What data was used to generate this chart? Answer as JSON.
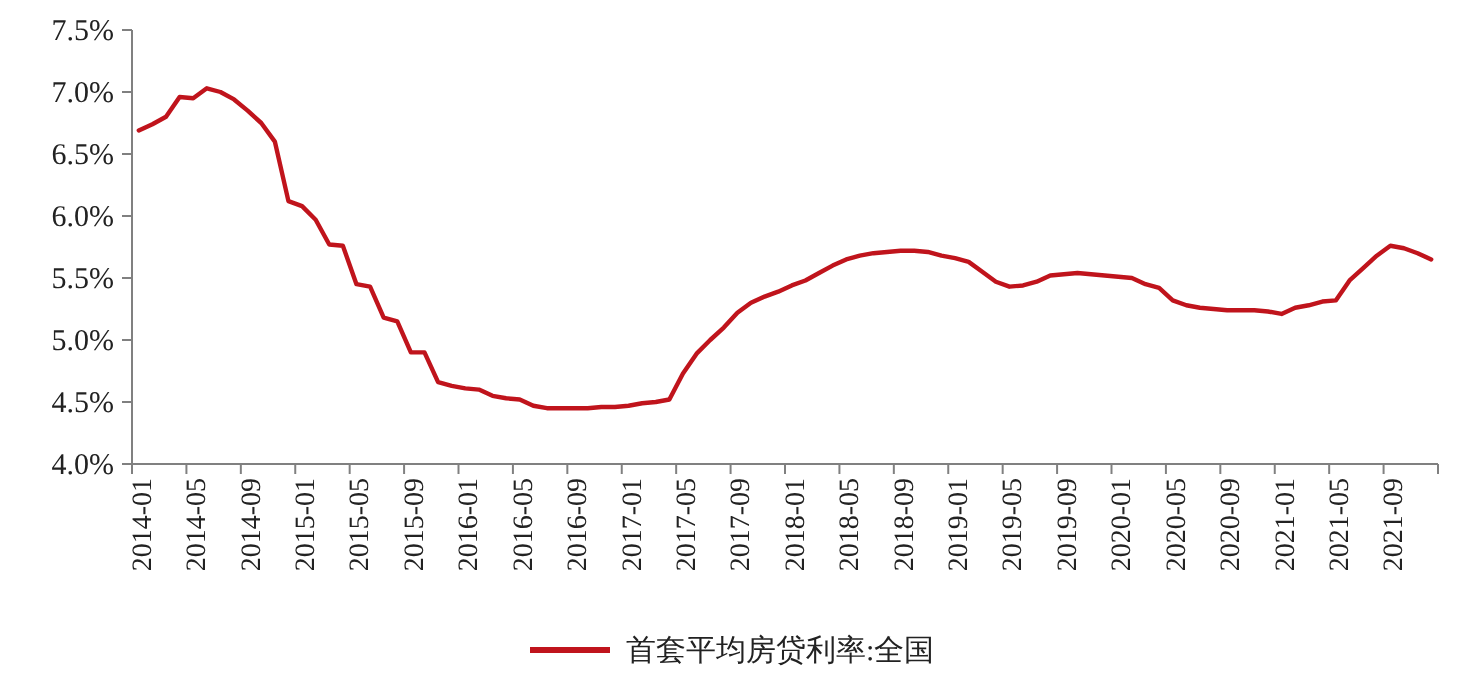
{
  "chart_data": {
    "type": "line",
    "categories": [
      "2014-01",
      null,
      null,
      null,
      "2014-05",
      null,
      null,
      null,
      "2014-09",
      null,
      null,
      null,
      "2015-01",
      null,
      null,
      null,
      "2015-05",
      null,
      null,
      null,
      "2015-09",
      null,
      null,
      null,
      "2016-01",
      null,
      null,
      null,
      "2016-05",
      null,
      null,
      null,
      "2016-09",
      null,
      null,
      null,
      "2017-01",
      null,
      null,
      null,
      "2017-05",
      null,
      null,
      null,
      "2017-09",
      null,
      null,
      null,
      "2018-01",
      null,
      null,
      null,
      "2018-05",
      null,
      null,
      null,
      "2018-09",
      null,
      null,
      null,
      "2019-01",
      null,
      null,
      null,
      "2019-05",
      null,
      null,
      null,
      "2019-09",
      null,
      null,
      null,
      "2020-01",
      null,
      null,
      null,
      "2020-05",
      null,
      null,
      null,
      "2020-09",
      null,
      null,
      null,
      "2021-01",
      null,
      null,
      null,
      "2021-05",
      null,
      null,
      null,
      "2021-09",
      null,
      null,
      null
    ],
    "series": [
      {
        "name": "首套平均房贷利率:全国",
        "color": "#c0141c",
        "values": [
          6.69,
          6.74,
          6.8,
          6.96,
          6.95,
          7.03,
          7.0,
          6.94,
          6.85,
          6.75,
          6.6,
          6.12,
          6.08,
          5.97,
          5.77,
          5.76,
          5.45,
          5.43,
          5.18,
          5.15,
          4.9,
          4.9,
          4.66,
          4.63,
          4.61,
          4.6,
          4.55,
          4.53,
          4.52,
          4.47,
          4.45,
          4.45,
          4.45,
          4.45,
          4.46,
          4.46,
          4.47,
          4.49,
          4.5,
          4.52,
          4.73,
          4.89,
          5.0,
          5.1,
          5.22,
          5.3,
          5.35,
          5.39,
          5.44,
          5.48,
          5.54,
          5.6,
          5.65,
          5.68,
          5.7,
          5.71,
          5.72,
          5.72,
          5.71,
          5.68,
          5.66,
          5.63,
          5.55,
          5.47,
          5.43,
          5.44,
          5.47,
          5.52,
          5.53,
          5.54,
          5.53,
          5.52,
          5.51,
          5.5,
          5.45,
          5.42,
          5.32,
          5.28,
          5.26,
          5.25,
          5.24,
          5.24,
          5.24,
          5.23,
          5.21,
          5.26,
          5.28,
          5.31,
          5.32,
          5.48,
          5.58,
          5.68,
          5.76,
          5.74,
          5.7,
          5.65
        ]
      }
    ],
    "ylim": [
      4.0,
      7.5
    ],
    "yticks": [
      {
        "value": 4.0,
        "label": "4.0%"
      },
      {
        "value": 4.5,
        "label": "4.5%"
      },
      {
        "value": 5.0,
        "label": "5.0%"
      },
      {
        "value": 5.5,
        "label": "5.5%"
      },
      {
        "value": 6.0,
        "label": "6.0%"
      },
      {
        "value": 6.5,
        "label": "6.5%"
      },
      {
        "value": 7.0,
        "label": "7.0%"
      },
      {
        "value": 7.5,
        "label": "7.5%"
      }
    ],
    "legend": "bottom"
  }
}
